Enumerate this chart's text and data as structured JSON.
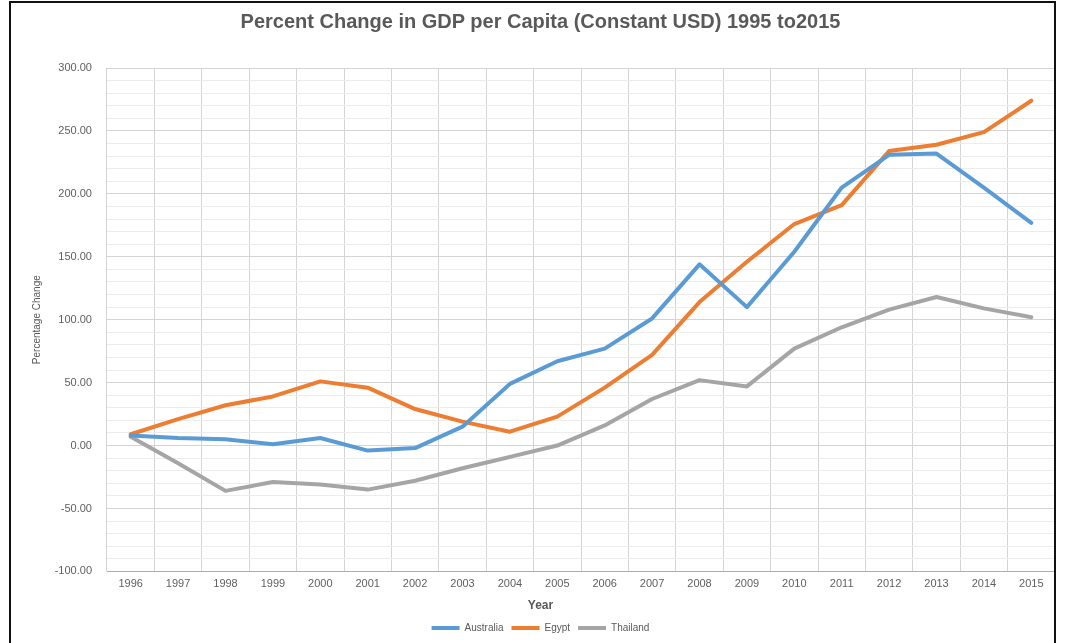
{
  "chart_data": {
    "type": "line",
    "title": "Percent Change in GDP per Capita (Constant USD) 1995 to2015",
    "xlabel": "Year",
    "ylabel": "Percentage Change",
    "categories": [
      "1996",
      "1997",
      "1998",
      "1999",
      "2000",
      "2001",
      "2002",
      "2003",
      "2004",
      "2005",
      "2006",
      "2007",
      "2008",
      "2009",
      "2010",
      "2011",
      "2012",
      "2013",
      "2014",
      "2015"
    ],
    "series": [
      {
        "name": "Australia",
        "color": "#5b9bd5",
        "values": [
          8,
          6,
          5,
          1,
          6,
          -4,
          -2,
          15,
          49,
          67,
          77,
          101,
          144,
          110,
          154,
          205,
          231,
          232,
          205,
          177
        ]
      },
      {
        "name": "Egypt",
        "color": "#ed7d31",
        "values": [
          9,
          21,
          32,
          39,
          51,
          46,
          29,
          19,
          11,
          23,
          46,
          72,
          114,
          146,
          176,
          191,
          234,
          239,
          249,
          274
        ]
      },
      {
        "name": "Thailand",
        "color": "#a5a5a5",
        "values": [
          7,
          -14,
          -36,
          -29,
          -31,
          -35,
          -28,
          -18,
          -9,
          0,
          16,
          37,
          52,
          47,
          77,
          94,
          108,
          118,
          109,
          102
        ]
      }
    ],
    "ylim": [
      -100,
      300
    ],
    "yticks": [
      {
        "value": -100,
        "label": "-100.00"
      },
      {
        "value": -90,
        "label": null
      },
      {
        "value": -80,
        "label": null
      },
      {
        "value": -70,
        "label": null
      },
      {
        "value": -60,
        "label": null
      },
      {
        "value": -50,
        "label": "-50.00"
      },
      {
        "value": -40,
        "label": null
      },
      {
        "value": -30,
        "label": null
      },
      {
        "value": -20,
        "label": null
      },
      {
        "value": -10,
        "label": null
      },
      {
        "value": 0,
        "label": "0.00"
      },
      {
        "value": 10,
        "label": null
      },
      {
        "value": 20,
        "label": null
      },
      {
        "value": 30,
        "label": null
      },
      {
        "value": 40,
        "label": null
      },
      {
        "value": 50,
        "label": "50.00"
      },
      {
        "value": 60,
        "label": null
      },
      {
        "value": 70,
        "label": null
      },
      {
        "value": 80,
        "label": null
      },
      {
        "value": 90,
        "label": null
      },
      {
        "value": 100,
        "label": "100.00"
      },
      {
        "value": 110,
        "label": null
      },
      {
        "value": 120,
        "label": null
      },
      {
        "value": 130,
        "label": null
      },
      {
        "value": 140,
        "label": null
      },
      {
        "value": 150,
        "label": "150.00"
      },
      {
        "value": 160,
        "label": null
      },
      {
        "value": 170,
        "label": null
      },
      {
        "value": 180,
        "label": null
      },
      {
        "value": 190,
        "label": null
      },
      {
        "value": 200,
        "label": "200.00"
      },
      {
        "value": 210,
        "label": null
      },
      {
        "value": 220,
        "label": null
      },
      {
        "value": 230,
        "label": null
      },
      {
        "value": 240,
        "label": null
      },
      {
        "value": 250,
        "label": "250.00"
      },
      {
        "value": 260,
        "label": null
      },
      {
        "value": 270,
        "label": null
      },
      {
        "value": 280,
        "label": null
      },
      {
        "value": 290,
        "label": null
      },
      {
        "value": 300,
        "label": "300.00"
      }
    ],
    "grid": true,
    "legend": "bottom",
    "marker": "none",
    "line_style": "solid"
  }
}
